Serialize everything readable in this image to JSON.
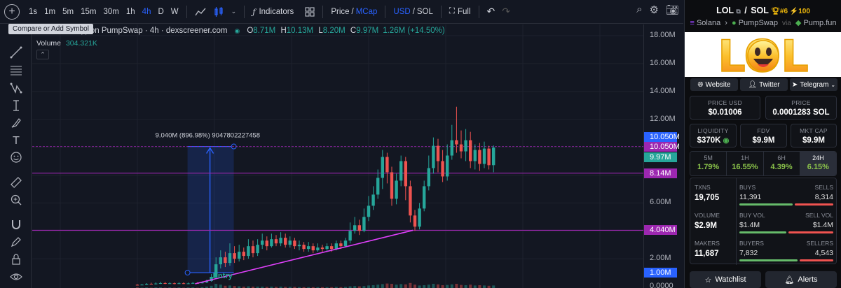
{
  "toolbar": {
    "intervals": [
      "1s",
      "1m",
      "5m",
      "15m",
      "30m",
      "1h",
      "4h",
      "D",
      "W"
    ],
    "active_interval": "4h",
    "indicators_label": "Indicators",
    "price_label": "Price",
    "slash": "/",
    "mcap_label": "MCap",
    "usd_label": "USD",
    "sol_label": "SOL",
    "full_label": "Full",
    "tooltip": "Compare or Add Symbol"
  },
  "legend": {
    "title": "arket Cap) on PumpSwap · 4h · dexscreener.com",
    "o_key": "O",
    "o_val": "8.71M",
    "h_key": "H",
    "h_val": "10.13M",
    "l_key": "L",
    "l_val": "8.20M",
    "c_key": "C",
    "c_val": "9.97M",
    "change": "1.26M (+14.50%)",
    "volume_label": "Volume",
    "volume_value": "304.321K"
  },
  "annotations": {
    "measure_label": "9.040M (896.98%) 9047802227458",
    "entry_label": "Entry"
  },
  "price_axis": {
    "ticks": [
      "18.00M",
      "16.00M",
      "14.00M",
      "12.00M",
      "6.00M",
      "2.00M",
      "0.0000"
    ],
    "tags": [
      {
        "text": "10.050M",
        "color": "#2962ff"
      },
      {
        "text": "10.050M",
        "color": "#9c27b0"
      },
      {
        "text": "9.97M",
        "color": "#26a69a"
      },
      {
        "text": "8.14M",
        "color": "#9c27b0"
      },
      {
        "text": "4.040M",
        "color": "#9c27b0"
      },
      {
        "text": "1.00M",
        "color": "#2962ff"
      }
    ]
  },
  "panel": {
    "pair": "LOL",
    "quote": "SOL",
    "rank": "#6",
    "boost": "100",
    "chain": "Solana",
    "dex": "PumpSwap",
    "via": "via",
    "launchpad": "Pump.fun",
    "banner_text": "LOL",
    "links": [
      "Website",
      "Twitter",
      "Telegram"
    ],
    "price_usd_label": "PRICE USD",
    "price_usd": "$0.01006",
    "price_label": "PRICE",
    "price_sol": "0.0001283 SOL",
    "liquidity_label": "LIQUIDITY",
    "liquidity": "$370K",
    "fdv_label": "FDV",
    "fdv": "$9.9M",
    "mktcap_label": "MKT CAP",
    "mktcap": "$9.9M",
    "periods": [
      {
        "label": "5M",
        "value": "1.79%"
      },
      {
        "label": "1H",
        "value": "16.55%"
      },
      {
        "label": "6H",
        "value": "4.39%"
      },
      {
        "label": "24H",
        "value": "6.15%"
      }
    ],
    "txns_label": "TXNS",
    "txns": "19,705",
    "buys_label": "BUYS",
    "buys": "11,391",
    "sells_label": "SELLS",
    "sells": "8,314",
    "volume_label": "VOLUME",
    "volume": "$2.9M",
    "buyvol_label": "BUY VOL",
    "buyvol": "$1.4M",
    "sellvol_label": "SELL VOL",
    "sellvol": "$1.4M",
    "makers_label": "MAKERS",
    "makers": "11,687",
    "buyers_label": "BUYERS",
    "buyers": "7,832",
    "sellers_label": "SELLERS",
    "sellers": "4,543",
    "watchlist_label": "Watchlist",
    "alerts_label": "Alerts"
  },
  "colors": {
    "up": "#26a69a",
    "down": "#ef5350",
    "purple": "#9c27b0",
    "blue": "#2962ff",
    "background": "#131722"
  },
  "chart_data": {
    "type": "candlestick",
    "title": "",
    "ylabel": "",
    "ylim": [
      0,
      19
    ],
    "y_unit": "M",
    "last_close": 9.97,
    "horizontal_levels": [
      10.05,
      8.14,
      4.04
    ],
    "candles": [
      [
        0.13,
        0.12,
        0.16,
        0.1
      ],
      [
        0.12,
        0.14,
        0.18,
        0.1
      ],
      [
        0.14,
        0.2,
        0.25,
        0.12
      ],
      [
        0.2,
        0.17,
        0.28,
        0.15
      ],
      [
        0.17,
        0.22,
        0.3,
        0.15
      ],
      [
        0.22,
        0.25,
        0.35,
        0.19
      ],
      [
        0.25,
        0.21,
        0.33,
        0.18
      ],
      [
        0.21,
        0.24,
        0.3,
        0.19
      ],
      [
        0.24,
        0.2,
        0.29,
        0.17
      ],
      [
        0.2,
        0.24,
        0.31,
        0.18
      ],
      [
        0.24,
        0.21,
        0.3,
        0.19
      ],
      [
        0.21,
        0.23,
        0.29,
        0.18
      ],
      [
        0.23,
        0.26,
        0.33,
        0.21
      ],
      [
        0.26,
        0.24,
        0.32,
        0.22
      ],
      [
        0.24,
        0.3,
        0.36,
        0.23
      ],
      [
        0.3,
        0.4,
        0.5,
        0.25
      ],
      [
        0.4,
        0.7,
        0.9,
        0.35
      ],
      [
        0.7,
        1.6,
        2.1,
        0.6
      ],
      [
        1.6,
        2.1,
        2.6,
        1.3
      ],
      [
        2.1,
        1.7,
        2.5,
        1.4
      ],
      [
        1.7,
        2.4,
        3.1,
        1.5
      ],
      [
        2.4,
        2.0,
        2.9,
        1.7
      ],
      [
        2.0,
        2.5,
        3.0,
        1.8
      ],
      [
        2.5,
        2.2,
        2.8,
        1.9
      ],
      [
        2.2,
        2.9,
        3.4,
        2.0
      ],
      [
        2.9,
        2.4,
        3.3,
        2.1
      ],
      [
        2.4,
        3.0,
        3.4,
        2.2
      ],
      [
        3.0,
        3.3,
        3.8,
        2.7
      ],
      [
        3.3,
        2.9,
        3.6,
        2.6
      ],
      [
        2.9,
        3.4,
        3.8,
        2.8
      ],
      [
        3.4,
        3.1,
        3.7,
        2.9
      ],
      [
        3.1,
        3.5,
        3.9,
        2.9
      ],
      [
        3.5,
        3.0,
        3.8,
        2.8
      ],
      [
        3.0,
        3.3,
        3.6,
        2.8
      ],
      [
        3.3,
        2.9,
        3.5,
        2.7
      ],
      [
        2.9,
        3.0,
        3.3,
        2.6
      ],
      [
        3.0,
        2.7,
        3.2,
        2.5
      ],
      [
        2.7,
        2.9,
        3.2,
        2.5
      ],
      [
        2.9,
        2.6,
        3.1,
        2.4
      ],
      [
        2.6,
        2.8,
        3.1,
        2.5
      ],
      [
        2.8,
        2.7,
        3.0,
        2.5
      ],
      [
        2.7,
        2.9,
        3.1,
        2.55
      ],
      [
        2.9,
        2.7,
        3.1,
        2.5
      ],
      [
        2.7,
        3.1,
        3.3,
        2.6
      ],
      [
        3.1,
        2.9,
        3.3,
        2.7
      ],
      [
        2.9,
        3.3,
        3.5,
        2.8
      ],
      [
        3.3,
        4.0,
        4.6,
        3.1
      ],
      [
        4.0,
        4.4,
        5.0,
        3.8
      ],
      [
        4.4,
        4.0,
        4.8,
        3.7
      ],
      [
        4.0,
        5.0,
        5.6,
        3.9
      ],
      [
        5.0,
        5.8,
        6.5,
        4.7
      ],
      [
        5.8,
        6.6,
        7.2,
        5.5
      ],
      [
        6.6,
        7.8,
        8.4,
        6.3
      ],
      [
        7.8,
        9.3,
        9.8,
        7.0
      ],
      [
        9.3,
        8.2,
        9.6,
        7.4
      ],
      [
        8.2,
        6.3,
        8.6,
        5.8
      ],
      [
        6.3,
        7.6,
        8.1,
        5.9
      ],
      [
        7.6,
        9.0,
        9.4,
        7.2
      ],
      [
        9.0,
        7.2,
        9.3,
        6.2
      ],
      [
        7.2,
        5.1,
        7.6,
        4.6
      ],
      [
        5.1,
        4.3,
        5.5,
        4.0
      ],
      [
        4.3,
        5.6,
        6.0,
        4.1
      ],
      [
        5.6,
        7.2,
        7.6,
        5.4
      ],
      [
        7.2,
        8.5,
        9.4,
        6.9
      ],
      [
        8.5,
        10.1,
        10.7,
        8.1
      ],
      [
        10.1,
        9.0,
        10.6,
        8.2
      ],
      [
        9.0,
        7.9,
        9.8,
        7.5
      ],
      [
        7.9,
        9.4,
        10.2,
        7.6
      ],
      [
        9.4,
        10.5,
        11.6,
        9.1
      ],
      [
        10.5,
        10.2,
        12.9,
        9.6
      ],
      [
        10.2,
        9.7,
        11.2,
        9.2
      ],
      [
        9.7,
        10.5,
        11.3,
        9.0
      ],
      [
        10.5,
        9.0,
        11.1,
        8.5
      ],
      [
        9.0,
        9.8,
        10.2,
        8.4
      ],
      [
        9.8,
        8.8,
        10.3,
        8.3
      ],
      [
        8.8,
        9.9,
        10.4,
        8.5
      ],
      [
        9.9,
        8.71,
        10.1,
        8.4
      ],
      [
        8.71,
        9.97,
        10.13,
        8.2
      ]
    ],
    "volume": [
      0.02,
      0.01,
      0.02,
      0.01,
      0.02,
      0.02,
      0.01,
      0.02,
      0.01,
      0.02,
      0.01,
      0.02,
      0.02,
      0.01,
      0.03,
      0.05,
      0.08,
      0.15,
      0.12,
      0.08,
      0.09,
      0.07,
      0.06,
      0.05,
      0.06,
      0.05,
      0.05,
      0.05,
      0.04,
      0.05,
      0.04,
      0.05,
      0.04,
      0.04,
      0.04,
      0.03,
      0.03,
      0.03,
      0.03,
      0.03,
      0.03,
      0.03,
      0.03,
      0.04,
      0.03,
      0.04,
      0.06,
      0.07,
      0.06,
      0.07,
      0.09,
      0.1,
      0.12,
      0.14,
      0.16,
      0.15,
      0.12,
      0.14,
      0.13,
      0.18,
      0.12,
      0.09,
      0.1,
      0.12,
      0.15,
      0.13,
      0.1,
      0.11,
      0.13,
      0.15,
      0.11,
      0.1,
      0.12,
      0.09,
      0.1,
      0.09,
      0.08,
      0.09
    ]
  }
}
